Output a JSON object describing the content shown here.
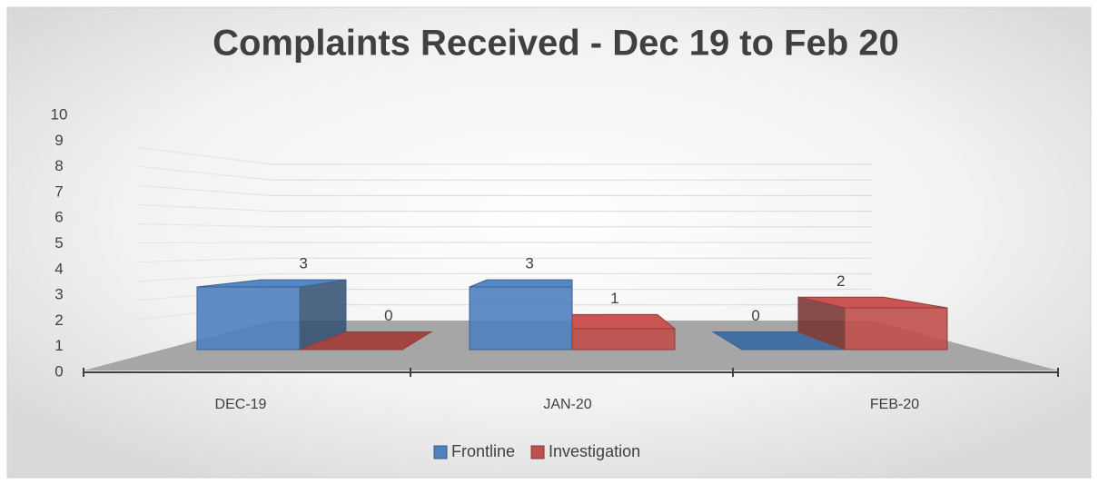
{
  "chart_data": {
    "type": "bar3d",
    "title": "Complaints Received - Dec 19 to Feb 20",
    "categories": [
      "DEC-19",
      "JAN-20",
      "FEB-20"
    ],
    "series": [
      {
        "name": "Frontline",
        "color": "#4f81bd",
        "values": [
          3,
          3,
          0
        ]
      },
      {
        "name": "Investigation",
        "color": "#c0504d",
        "values": [
          0,
          1,
          2
        ]
      }
    ],
    "ylim": [
      0,
      10
    ],
    "yticks": [
      0,
      1,
      2,
      3,
      4,
      5,
      6,
      7,
      8,
      9,
      10
    ],
    "grid": true,
    "legend": "bottom"
  }
}
